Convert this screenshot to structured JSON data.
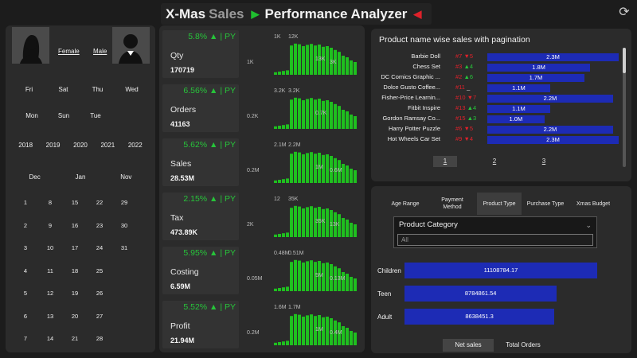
{
  "header": {
    "title_part1": "X-Mas",
    "title_part2": "Sales",
    "title_part3": "Performance Analyzer",
    "arrow_right_icon": "play-right-icon",
    "arrow_left_icon": "play-left-icon",
    "refresh_icon": "refresh-icon"
  },
  "filters": {
    "gender": [
      "Female",
      "Male"
    ],
    "weekdays_row1": [
      "Fri",
      "Sat",
      "Thu",
      "Wed"
    ],
    "weekdays_row2": [
      "Mon",
      "Sun",
      "Tue"
    ],
    "years": [
      "2018",
      "2019",
      "2020",
      "2021",
      "2022"
    ],
    "months": [
      "Dec",
      "Jan",
      "Nov"
    ],
    "days": [
      [
        "1",
        "8",
        "15",
        "22",
        "29"
      ],
      [
        "2",
        "9",
        "16",
        "23",
        "30"
      ],
      [
        "3",
        "10",
        "17",
        "24",
        "31"
      ],
      [
        "4",
        "11",
        "18",
        "25",
        ""
      ],
      [
        "5",
        "12",
        "19",
        "26",
        ""
      ],
      [
        "6",
        "13",
        "20",
        "27",
        ""
      ],
      [
        "7",
        "14",
        "21",
        "28",
        ""
      ]
    ]
  },
  "kpis": [
    {
      "name": "Qty",
      "value": "170719",
      "pct": "5.8% ▲ | PY",
      "labels": [
        "1K",
        "1K",
        "12K",
        "13K",
        "3K"
      ]
    },
    {
      "name": "Orders",
      "value": "41163",
      "pct": "6.56% ▲ | PY",
      "labels": [
        "0.2K",
        "3.2K",
        "3.2K",
        "0.7K"
      ]
    },
    {
      "name": "Sales",
      "value": "28.53M",
      "pct": "5.62% ▲ | PY",
      "labels": [
        "0.2M",
        "2.1M",
        "2.2M",
        "1M",
        "0.6M"
      ]
    },
    {
      "name": "Tax",
      "value": "473.89K",
      "pct": "2.15% ▲ | PY",
      "labels": [
        "2K",
        "12",
        "35K",
        "35K",
        "13K"
      ]
    },
    {
      "name": "Costing",
      "value": "6.59M",
      "pct": "5.95% ▲ | PY",
      "labels": [
        "0.05M",
        "0.48M",
        "0.51M",
        "5M",
        "0.13M"
      ]
    },
    {
      "name": "Profit",
      "value": "21.94M",
      "pct": "5.52% ▲ | PY",
      "labels": [
        "0.2M",
        "1.6M",
        "1.7M",
        "1M",
        "0.4M"
      ]
    }
  ],
  "kpi_bar_pattern": [
    8,
    10,
    12,
    14,
    92,
    98,
    96,
    90,
    94,
    97,
    92,
    95,
    88,
    90,
    85,
    78,
    72,
    60,
    55,
    45,
    40
  ],
  "products": {
    "title": "Product name wise sales with pagination",
    "rows": [
      {
        "name": "Barbie Doll",
        "rank": "#7",
        "change": "▼5",
        "dir": "down",
        "sales": "2.3M",
        "value": 2.3
      },
      {
        "name": "Chess Set",
        "rank": "#3",
        "change": "▲4",
        "dir": "up",
        "sales": "1.8M",
        "value": 1.8
      },
      {
        "name": "DC Comics Graphic ...",
        "rank": "#2",
        "change": "▲6",
        "dir": "up",
        "sales": "1.7M",
        "value": 1.7
      },
      {
        "name": "Dolce Gusto Coffee...",
        "rank": "#11",
        "change": "_",
        "dir": "none",
        "sales": "1.1M",
        "value": 1.1
      },
      {
        "name": "Fisher-Price Learnin...",
        "rank": "#10",
        "change": "▼7",
        "dir": "down",
        "sales": "2.2M",
        "value": 2.2
      },
      {
        "name": "Fitbit Inspire",
        "rank": "#13",
        "change": "▲4",
        "dir": "up",
        "sales": "1.1M",
        "value": 1.1
      },
      {
        "name": "Gordon Ramsay Co...",
        "rank": "#15",
        "change": "▲3",
        "dir": "up",
        "sales": "1.0M",
        "value": 1.0
      },
      {
        "name": "Harry Potter Puzzle",
        "rank": "#6",
        "change": "▼5",
        "dir": "down",
        "sales": "2.2M",
        "value": 2.2
      },
      {
        "name": "Hot Wheels Car Set",
        "rank": "#9",
        "change": "▼4",
        "dir": "down",
        "sales": "2.3M",
        "value": 2.3
      }
    ],
    "pages": [
      "1",
      "2",
      "3"
    ]
  },
  "breakdown": {
    "tabs": [
      "Age Range",
      "Payment Method",
      "Product Type",
      "Purchase Type",
      "Xmas Budget"
    ],
    "active_tab": "Product Type",
    "category_title": "Product Category",
    "category_value": "All",
    "segments": [
      {
        "label": "Children",
        "value_text": "11108784.17",
        "value": 11108784.17
      },
      {
        "label": "Teen",
        "value_text": "8784861.54",
        "value": 8784861.54
      },
      {
        "label": "Adult",
        "value_text": "8638451.3",
        "value": 8638451.3
      }
    ],
    "metrics": [
      "Net sales",
      "Total Orders"
    ],
    "active_metric": "Net sales"
  },
  "colors": {
    "accent_green": "#27c43a",
    "bar_green": "#1fbf1f",
    "bar_blue": "#1d2bb5",
    "rank_red": "#e0212a",
    "rank_green": "#27c43a"
  }
}
